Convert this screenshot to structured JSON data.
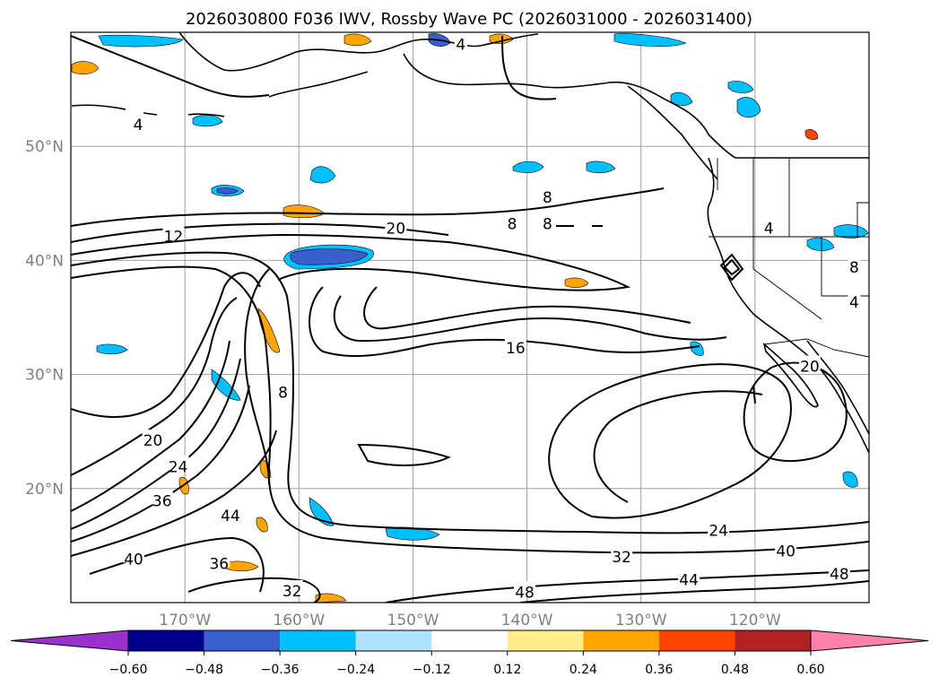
{
  "title": "2026030800 F036 IWV, Rossby Wave PC (2026031000 - 2026031400)",
  "axes": {
    "lat_ticks": [
      {
        "label": "50°N",
        "value": 50
      },
      {
        "label": "40°N",
        "value": 40
      },
      {
        "label": "30°N",
        "value": 30
      },
      {
        "label": "20°N",
        "value": 20
      }
    ],
    "lon_ticks": [
      {
        "label": "170°W",
        "value": -170
      },
      {
        "label": "160°W",
        "value": -160
      },
      {
        "label": "150°W",
        "value": -150
      },
      {
        "label": "140°W",
        "value": -140
      },
      {
        "label": "130°W",
        "value": -130
      },
      {
        "label": "120°W",
        "value": -120
      }
    ],
    "lon_range": [
      -180,
      -110
    ],
    "lat_range": [
      10,
      60
    ]
  },
  "contour_labels": [
    {
      "text": "4",
      "lon": -145.8,
      "lat": 59.0
    },
    {
      "text": "4",
      "lon": -174.1,
      "lat": 52.0
    },
    {
      "text": "8",
      "lon": -138.2,
      "lat": 45.6
    },
    {
      "text": "8",
      "lon": -141.3,
      "lat": 43.3
    },
    {
      "text": "8",
      "lon": -138.2,
      "lat": 43.3
    },
    {
      "text": "20",
      "lon": -151.5,
      "lat": 42.9
    },
    {
      "text": "12",
      "lon": -171.0,
      "lat": 42.2
    },
    {
      "text": "4",
      "lon": -118.8,
      "lat": 42.9
    },
    {
      "text": "8",
      "lon": -111.3,
      "lat": 39.5
    },
    {
      "text": "4",
      "lon": -111.3,
      "lat": 36.4
    },
    {
      "text": "16",
      "lon": -141.0,
      "lat": 32.4
    },
    {
      "text": "8",
      "lon": -161.4,
      "lat": 28.5
    },
    {
      "text": "20",
      "lon": -115.2,
      "lat": 30.8
    },
    {
      "text": "20",
      "lon": -172.8,
      "lat": 24.3
    },
    {
      "text": "24",
      "lon": -170.6,
      "lat": 22.0
    },
    {
      "text": "36",
      "lon": -172.0,
      "lat": 19.0
    },
    {
      "text": "44",
      "lon": -166.0,
      "lat": 17.7
    },
    {
      "text": "24",
      "lon": -123.2,
      "lat": 16.4
    },
    {
      "text": "40",
      "lon": -117.3,
      "lat": 14.6
    },
    {
      "text": "32",
      "lon": -131.7,
      "lat": 14.1
    },
    {
      "text": "40",
      "lon": -174.5,
      "lat": 13.9
    },
    {
      "text": "36",
      "lon": -167.0,
      "lat": 13.5
    },
    {
      "text": "48",
      "lon": -112.6,
      "lat": 12.6
    },
    {
      "text": "44",
      "lon": -125.8,
      "lat": 12.1
    },
    {
      "text": "32",
      "lon": -160.6,
      "lat": 11.1
    },
    {
      "text": "48",
      "lon": -140.2,
      "lat": 11.0
    }
  ],
  "colorbar": {
    "colors": [
      "#9932cc",
      "#00008b",
      "#3a5fcd",
      "#00bfff",
      "#b0e2ff",
      "#ffffff",
      "#ffec8b",
      "#ffa500",
      "#ff4500",
      "#b22222",
      "#ff82ab"
    ],
    "ticks": [
      "−0.60",
      "−0.48",
      "−0.36",
      "−0.24",
      "−0.12",
      "0.12",
      "0.24",
      "0.36",
      "0.48",
      "0.60"
    ]
  },
  "style": {
    "grid_color": "#a0a0a0",
    "contour_color": "#000000"
  }
}
